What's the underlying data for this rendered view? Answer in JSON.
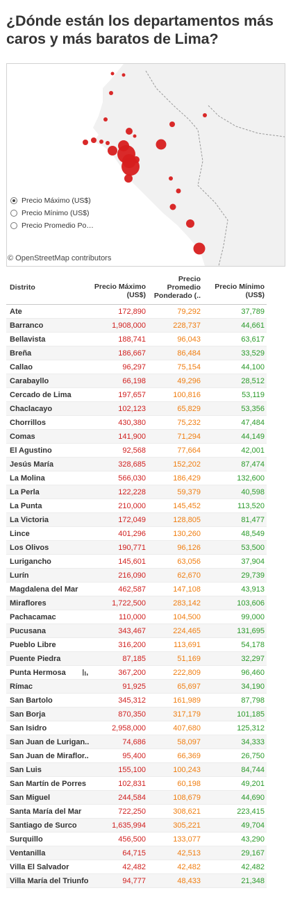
{
  "page": {
    "title": "¿Dónde están los departamentos más caros y más baratos de Lima?"
  },
  "map": {
    "attribution": "© OpenStreetMap contributors",
    "legend": [
      {
        "label": "Precio Máximo (US$)",
        "selected": true
      },
      {
        "label": "Precio Mínimo (US$)",
        "selected": false
      },
      {
        "label": "Precio Promedio Po…",
        "selected": false
      }
    ],
    "colors": {
      "land": "#f1f1f1",
      "ocean": "#ffffff",
      "marker": "#d71e1e",
      "border": "#9a9a9a"
    }
  },
  "chart_data": {
    "type": "table",
    "columns": [
      "Distrito",
      "Precio Máximo (US$)",
      "Precio Promedio Ponderado (..",
      "Precio Mínimo (US$)"
    ],
    "header": {
      "distrito": "Distrito",
      "maximo": [
        "Precio Máximo",
        "(US$)"
      ],
      "promedio": [
        "Precio",
        "Promedio",
        "Ponderado (.."
      ],
      "minimo": [
        "Precio Mínimo",
        "(US$)"
      ]
    },
    "rows": [
      {
        "distrito": "Ate",
        "maximo": "172,890",
        "promedio": "79,292",
        "minimo": "37,789"
      },
      {
        "distrito": "Barranco",
        "maximo": "1,908,000",
        "promedio": "228,737",
        "minimo": "44,661"
      },
      {
        "distrito": "Bellavista",
        "maximo": "188,741",
        "promedio": "96,043",
        "minimo": "63,617"
      },
      {
        "distrito": "Breña",
        "maximo": "186,667",
        "promedio": "86,484",
        "minimo": "33,529"
      },
      {
        "distrito": "Callao",
        "maximo": "96,297",
        "promedio": "75,154",
        "minimo": "44,100"
      },
      {
        "distrito": "Carabayllo",
        "maximo": "66,198",
        "promedio": "49,296",
        "minimo": "28,512"
      },
      {
        "distrito": "Cercado de Lima",
        "maximo": "197,657",
        "promedio": "100,816",
        "minimo": "53,119"
      },
      {
        "distrito": "Chaclacayo",
        "maximo": "102,123",
        "promedio": "65,829",
        "minimo": "53,356"
      },
      {
        "distrito": "Chorrillos",
        "maximo": "430,380",
        "promedio": "75,232",
        "minimo": "47,484"
      },
      {
        "distrito": "Comas",
        "maximo": "141,900",
        "promedio": "71,294",
        "minimo": "44,149"
      },
      {
        "distrito": "El Agustino",
        "maximo": "92,568",
        "promedio": "77,664",
        "minimo": "42,001"
      },
      {
        "distrito": "Jesús María",
        "maximo": "328,685",
        "promedio": "152,202",
        "minimo": "87,474"
      },
      {
        "distrito": "La Molina",
        "maximo": "566,030",
        "promedio": "186,429",
        "minimo": "132,600"
      },
      {
        "distrito": "La Perla",
        "maximo": "122,228",
        "promedio": "59,379",
        "minimo": "40,598"
      },
      {
        "distrito": "La Punta",
        "maximo": "210,000",
        "promedio": "145,452",
        "minimo": "113,520"
      },
      {
        "distrito": "La Victoria",
        "maximo": "172,049",
        "promedio": "128,805",
        "minimo": "81,477"
      },
      {
        "distrito": "Lince",
        "maximo": "401,296",
        "promedio": "130,260",
        "minimo": "48,549"
      },
      {
        "distrito": "Los Olivos",
        "maximo": "190,771",
        "promedio": "96,126",
        "minimo": "53,500"
      },
      {
        "distrito": "Lurigancho",
        "maximo": "145,601",
        "promedio": "63,056",
        "minimo": "37,904"
      },
      {
        "distrito": "Lurín",
        "maximo": "216,090",
        "promedio": "62,670",
        "minimo": "29,739"
      },
      {
        "distrito": "Magdalena del Mar",
        "maximo": "462,587",
        "promedio": "147,108",
        "minimo": "43,913"
      },
      {
        "distrito": "Miraflores",
        "maximo": "1,722,500",
        "promedio": "283,142",
        "minimo": "103,606"
      },
      {
        "distrito": "Pachacamac",
        "maximo": "110,000",
        "promedio": "104,500",
        "minimo": "99,000"
      },
      {
        "distrito": "Pucusana",
        "maximo": "343,467",
        "promedio": "224,465",
        "minimo": "131,695"
      },
      {
        "distrito": "Pueblo Libre",
        "maximo": "316,200",
        "promedio": "113,691",
        "minimo": "54,178"
      },
      {
        "distrito": "Puente Piedra",
        "maximo": "87,185",
        "promedio": "51,169",
        "minimo": "32,297"
      },
      {
        "distrito": "Punta Hermosa",
        "maximo": "367,200",
        "promedio": "222,809",
        "minimo": "96,460"
      },
      {
        "distrito": "Rímac",
        "maximo": "91,925",
        "promedio": "65,697",
        "minimo": "34,190"
      },
      {
        "distrito": "San Bartolo",
        "maximo": "345,312",
        "promedio": "161,989",
        "minimo": "87,798"
      },
      {
        "distrito": "San Borja",
        "maximo": "870,350",
        "promedio": "317,179",
        "minimo": "101,185"
      },
      {
        "distrito": "San Isidro",
        "maximo": "2,958,000",
        "promedio": "407,680",
        "minimo": "125,312"
      },
      {
        "distrito": "San Juan de Lurigan..",
        "maximo": "74,686",
        "promedio": "58,097",
        "minimo": "34,333"
      },
      {
        "distrito": "San Juan de Miraflor..",
        "maximo": "95,400",
        "promedio": "66,369",
        "minimo": "26,750"
      },
      {
        "distrito": "San Luis",
        "maximo": "155,100",
        "promedio": "100,243",
        "minimo": "84,744"
      },
      {
        "distrito": "San Martín de Porres",
        "maximo": "102,831",
        "promedio": "60,198",
        "minimo": "49,201"
      },
      {
        "distrito": "San Miguel",
        "maximo": "244,584",
        "promedio": "108,679",
        "minimo": "44,690"
      },
      {
        "distrito": "Santa María del Mar",
        "maximo": "722,250",
        "promedio": "308,621",
        "minimo": "223,415"
      },
      {
        "distrito": "Santiago de Surco",
        "maximo": "1,635,994",
        "promedio": "305,221",
        "minimo": "49,704"
      },
      {
        "distrito": "Surquillo",
        "maximo": "456,500",
        "promedio": "133,077",
        "minimo": "43,290"
      },
      {
        "distrito": "Ventanilla",
        "maximo": "64,715",
        "promedio": "42,513",
        "minimo": "29,167"
      },
      {
        "distrito": "Villa El Salvador",
        "maximo": "42,482",
        "promedio": "42,482",
        "minimo": "42,482"
      },
      {
        "distrito": "Villa María del Triunfo",
        "maximo": "94,777",
        "promedio": "48,433",
        "minimo": "21,348"
      }
    ]
  }
}
